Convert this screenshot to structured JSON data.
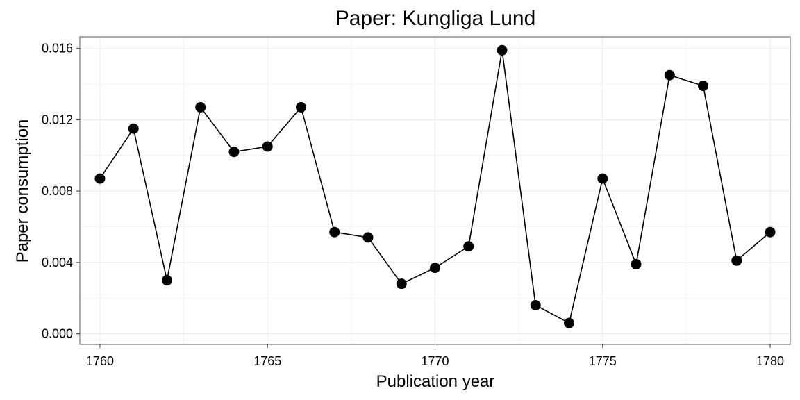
{
  "chart_data": {
    "type": "line",
    "title": "Paper: Kungliga Lund",
    "xlabel": "Publication year",
    "ylabel": "Paper consumption",
    "xlim": [
      1759.4,
      1780.6
    ],
    "ylim": [
      -0.0006,
      0.01665
    ],
    "x_ticks": [
      1760,
      1765,
      1770,
      1775,
      1780
    ],
    "x_tick_labels": [
      "1760",
      "1765",
      "1770",
      "1775",
      "1780"
    ],
    "y_ticks": [
      0.0,
      0.004,
      0.008,
      0.012,
      0.016
    ],
    "y_tick_labels": [
      "0.000",
      "0.004",
      "0.008",
      "0.012",
      "0.016"
    ],
    "grid": true,
    "markers": true,
    "series": [
      {
        "x": [
          1760,
          1761,
          1762,
          1763,
          1764,
          1765,
          1766,
          1767,
          1768,
          1769,
          1770,
          1771,
          1772,
          1773,
          1774,
          1775,
          1776,
          1777,
          1778,
          1779,
          1780
        ],
        "values": [
          0.0087,
          0.0115,
          0.003,
          0.0127,
          0.0102,
          0.0105,
          0.0127,
          0.0057,
          0.0054,
          0.0028,
          0.0037,
          0.0049,
          0.0159,
          0.0016,
          0.0006,
          0.0087,
          0.0039,
          0.0145,
          0.0139,
          0.0041,
          0.0057
        ]
      }
    ]
  }
}
